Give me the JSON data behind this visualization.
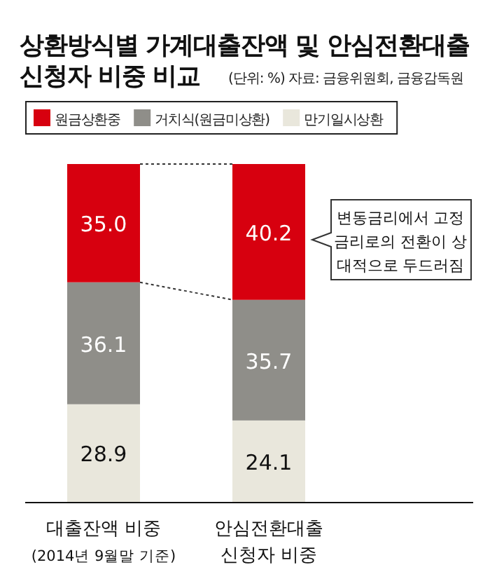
{
  "chart_data": {
    "type": "bar",
    "stacked": true,
    "title": "상환방식별 가계대출잔액 및 안심전환대출\n신청자 비중 비교",
    "subtitle": "(단위: %) 자료: 금융위원회, 금융감독원",
    "categories": [
      "대출잔액 비중\n(2014년 9월말 기준)",
      "안심전환대출\n신청자 비중"
    ],
    "series": [
      {
        "name": "만기일시상환",
        "color": "#e9e7dc",
        "values": [
          28.9,
          24.1
        ],
        "value_labels": [
          "28.9",
          "24.1"
        ]
      },
      {
        "name": "거치식(원금미상환)",
        "color": "#8f8e89",
        "values": [
          36.1,
          35.7
        ],
        "value_labels": [
          "36.1",
          "35.7"
        ]
      },
      {
        "name": "원금상환중",
        "color": "#d7000f",
        "values": [
          35.0,
          40.2
        ],
        "value_labels": [
          "35.0",
          "40.2"
        ]
      }
    ],
    "legend": "top",
    "annotations": [
      "변동금리에서 고정\n금리로의 전환이 상\n대적으로 두드러짐"
    ]
  }
}
